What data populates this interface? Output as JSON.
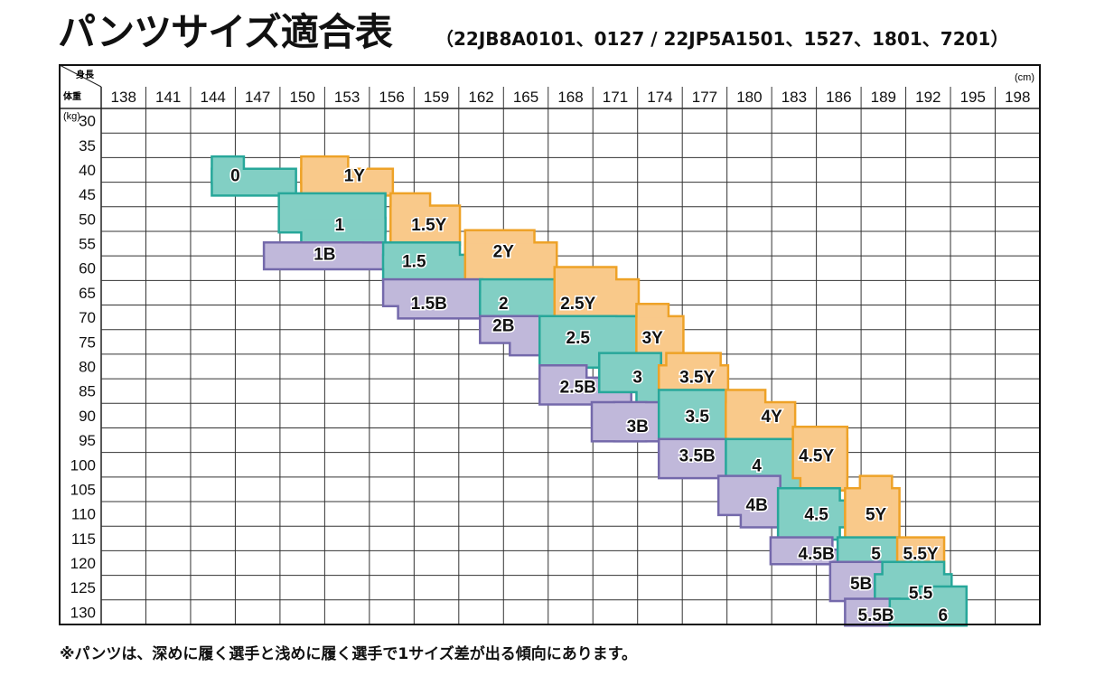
{
  "title": "パンツサイズ適合表",
  "subtitle": "（22JB8A0101、0127 / 22JP5A1501、1527、1801、7201）",
  "footnote": "※パンツは、深めに履く選手と浅めに履く選手で1サイズ差が出る傾向にあります。",
  "chart_data": {
    "type": "table",
    "corner_top_label": "身長",
    "corner_bottom_label": "体重",
    "x_unit": "(cm)",
    "y_unit": "(kg)",
    "x_ticks": [
      138,
      141,
      144,
      147,
      150,
      153,
      156,
      159,
      162,
      165,
      168,
      171,
      174,
      177,
      180,
      183,
      186,
      189,
      192,
      195,
      198
    ],
    "y_ticks": [
      30,
      35,
      40,
      45,
      50,
      55,
      60,
      65,
      70,
      75,
      80,
      85,
      90,
      95,
      100,
      105,
      110,
      115,
      120,
      125,
      130
    ],
    "xlim": [
      136.5,
      199.5
    ],
    "ylim": [
      27.5,
      132.5
    ],
    "colors": {
      "Y": {
        "fill": "#f9c98a",
        "stroke": "#eea227"
      },
      "T": {
        "fill": "#82cfc4",
        "stroke": "#27a79a"
      },
      "B": {
        "fill": "#c0b8da",
        "stroke": "#7469ab"
      }
    },
    "regions": [
      {
        "label": "0",
        "group": "T",
        "label_at": [
          145.5,
          41.0
        ],
        "rects": [
          [
            144,
            146,
            37.5,
            42.5
          ],
          [
            144,
            149.5,
            40,
            45
          ]
        ]
      },
      {
        "label": "1Y",
        "group": "Y",
        "label_at": [
          153.5,
          41.0
        ],
        "rects": [
          [
            150,
            153,
            37.5,
            42.5
          ],
          [
            150,
            156,
            40,
            45
          ]
        ]
      },
      {
        "label": "1",
        "group": "T",
        "label_at": [
          152.5,
          51.0
        ],
        "rects": [
          [
            148.5,
            155.5,
            45,
            52.5
          ],
          [
            150,
            155.5,
            50,
            55
          ]
        ]
      },
      {
        "label": "1.5Y",
        "group": "Y",
        "label_at": [
          158.5,
          51.0
        ],
        "rects": [
          [
            156,
            158.5,
            45,
            55
          ],
          [
            156,
            160.5,
            47.5,
            55
          ]
        ]
      },
      {
        "label": "1B",
        "group": "B",
        "label_at": [
          151.5,
          57.0
        ],
        "rects": [
          [
            147.5,
            154,
            55,
            57.5
          ],
          [
            147.5,
            155.5,
            55,
            60
          ]
        ]
      },
      {
        "label": "1.5",
        "group": "T",
        "label_at": [
          157.5,
          58.5
        ],
        "rects": [
          [
            155.5,
            160.5,
            55,
            60
          ],
          [
            155.5,
            162,
            57.5,
            62.5
          ]
        ]
      },
      {
        "label": "2Y",
        "group": "Y",
        "label_at": [
          163.5,
          56.5
        ],
        "rects": [
          [
            161,
            165.5,
            52.5,
            57.5
          ],
          [
            161,
            167,
            55,
            62.5
          ]
        ]
      },
      {
        "label": "1.5B",
        "group": "B",
        "label_at": [
          158.5,
          67.0
        ],
        "rects": [
          [
            155.5,
            162,
            62.5,
            67.5
          ],
          [
            156.5,
            162,
            65,
            70
          ]
        ]
      },
      {
        "label": "2",
        "group": "T",
        "label_at": [
          163.5,
          67.0
        ],
        "rects": [
          [
            162,
            167,
            62.5,
            70
          ],
          [
            162,
            165.5,
            65,
            72.5
          ]
        ]
      },
      {
        "label": "2.5Y",
        "group": "Y",
        "label_at": [
          168.5,
          67.0
        ],
        "rects": [
          [
            167,
            171,
            60,
            67.5
          ],
          [
            167,
            172.5,
            62.5,
            70
          ]
        ]
      },
      {
        "label": "2B",
        "group": "B",
        "label_at": [
          163.5,
          71.5
        ],
        "rects": [
          [
            162,
            165.5,
            70,
            72.5
          ],
          [
            162,
            166,
            70,
            75
          ],
          [
            164,
            166,
            70,
            77.5
          ]
        ]
      },
      {
        "label": "2.5",
        "group": "T",
        "label_at": [
          168.5,
          74.0
        ],
        "rects": [
          [
            166,
            171,
            70,
            77.5
          ],
          [
            166,
            172.5,
            70,
            80
          ]
        ]
      },
      {
        "label": "3Y",
        "group": "Y",
        "label_at": [
          173.5,
          74.0
        ],
        "rects": [
          [
            172.5,
            174.5,
            67.5,
            80
          ],
          [
            172.5,
            175.5,
            70,
            77.5
          ]
        ]
      },
      {
        "label": "2.5B",
        "group": "B",
        "label_at": [
          168.5,
          84.0
        ],
        "rects": [
          [
            166,
            169,
            80,
            85
          ],
          [
            166,
            172,
            82.5,
            87.5
          ]
        ]
      },
      {
        "label": "3",
        "group": "T",
        "label_at": [
          172.5,
          82.0
        ],
        "rects": [
          [
            170,
            174,
            77.5,
            85
          ],
          [
            172.5,
            176,
            82.5,
            87.5
          ]
        ]
      },
      {
        "label": "3.5Y",
        "group": "Y",
        "label_at": [
          176.5,
          82.0
        ],
        "rects": [
          [
            174.5,
            178,
            77.5,
            85
          ],
          [
            174,
            178.5,
            80,
            85
          ]
        ]
      },
      {
        "label": "3B",
        "group": "B",
        "label_at": [
          172.5,
          92.0
        ],
        "rects": [
          [
            171,
            173,
            87.5,
            95
          ],
          [
            169.5,
            175,
            87.5,
            95
          ]
        ]
      },
      {
        "label": "3.5",
        "group": "T",
        "label_at": [
          176.5,
          90.0
        ],
        "rects": [
          [
            174,
            178.5,
            85,
            95
          ],
          [
            175,
            178.5,
            92.5,
            95
          ]
        ]
      },
      {
        "label": "4Y",
        "group": "Y",
        "label_at": [
          181.5,
          90.0
        ],
        "rects": [
          [
            178.5,
            181,
            85,
            95
          ],
          [
            178.5,
            183,
            87.5,
            95
          ]
        ]
      },
      {
        "label": "3.5B",
        "group": "B",
        "label_at": [
          176.5,
          98.0
        ],
        "rects": [
          [
            174,
            178.5,
            95,
            102.5
          ],
          [
            175,
            178.5,
            97.5,
            100
          ]
        ]
      },
      {
        "label": "4",
        "group": "T",
        "label_at": [
          180.5,
          100.0
        ],
        "rects": [
          [
            178.5,
            183.5,
            95,
            102.5
          ],
          [
            181.5,
            183.5,
            97.5,
            105
          ]
        ]
      },
      {
        "label": "4.5Y",
        "group": "Y",
        "label_at": [
          184.5,
          98.0
        ],
        "rects": [
          [
            183,
            186.5,
            92.5,
            102.5
          ],
          [
            183.5,
            186.5,
            95,
            105
          ]
        ]
      },
      {
        "label": "4B",
        "group": "B",
        "label_at": [
          180.5,
          108.0
        ],
        "rects": [
          [
            178,
            182,
            102.5,
            110
          ],
          [
            179.5,
            183,
            107.5,
            112.5
          ]
        ]
      },
      {
        "label": "4.5",
        "group": "T",
        "label_at": [
          184.5,
          110.0
        ],
        "rects": [
          [
            182,
            186,
            105,
            115
          ],
          [
            183.5,
            186.5,
            107.5,
            112.5
          ]
        ]
      },
      {
        "label": "5Y",
        "group": "Y",
        "label_at": [
          188.5,
          110.0
        ],
        "rects": [
          [
            186.5,
            190,
            105,
            115
          ],
          [
            187.5,
            189.5,
            102.5,
            112.5
          ]
        ]
      },
      {
        "label": "4.5B",
        "group": "B",
        "label_at": [
          184.5,
          118.0
        ],
        "rects": [
          [
            181.5,
            185.5,
            115,
            120
          ],
          [
            183,
            186,
            117.5,
            120
          ]
        ]
      },
      {
        "label": "5",
        "group": "T",
        "label_at": [
          188.5,
          118.0
        ],
        "rects": [
          [
            186,
            190,
            115,
            120
          ],
          [
            187,
            191,
            117.5,
            122.5
          ]
        ]
      },
      {
        "label": "5.5Y",
        "group": "Y",
        "label_at": [
          191.5,
          118.0
        ],
        "rects": [
          [
            190,
            193,
            115,
            122.5
          ],
          [
            190.5,
            192.5,
            117.5,
            120
          ]
        ]
      },
      {
        "label": "5B",
        "group": "B",
        "label_at": [
          187.5,
          124.0
        ],
        "rects": [
          [
            185.5,
            189,
            120,
            127.5
          ],
          [
            187,
            189,
            122.5,
            125
          ]
        ]
      },
      {
        "label": "5.5",
        "group": "T",
        "label_at": [
          191.5,
          126.0
        ],
        "rects": [
          [
            188.5,
            193.5,
            122.5,
            127.5
          ],
          [
            189,
            193,
            120,
            130
          ]
        ]
      },
      {
        "label": "5.5B",
        "group": "B",
        "label_at": [
          188.5,
          130.5
        ],
        "rects": [
          [
            186.5,
            190,
            127.5,
            132.5
          ],
          [
            187,
            189.5,
            130,
            132.5
          ]
        ]
      },
      {
        "label": "6",
        "group": "T",
        "label_at": [
          193.0,
          130.5
        ],
        "rects": [
          [
            189.5,
            194.5,
            127.5,
            132.5
          ],
          [
            191.5,
            194.5,
            125,
            130
          ]
        ]
      }
    ]
  }
}
